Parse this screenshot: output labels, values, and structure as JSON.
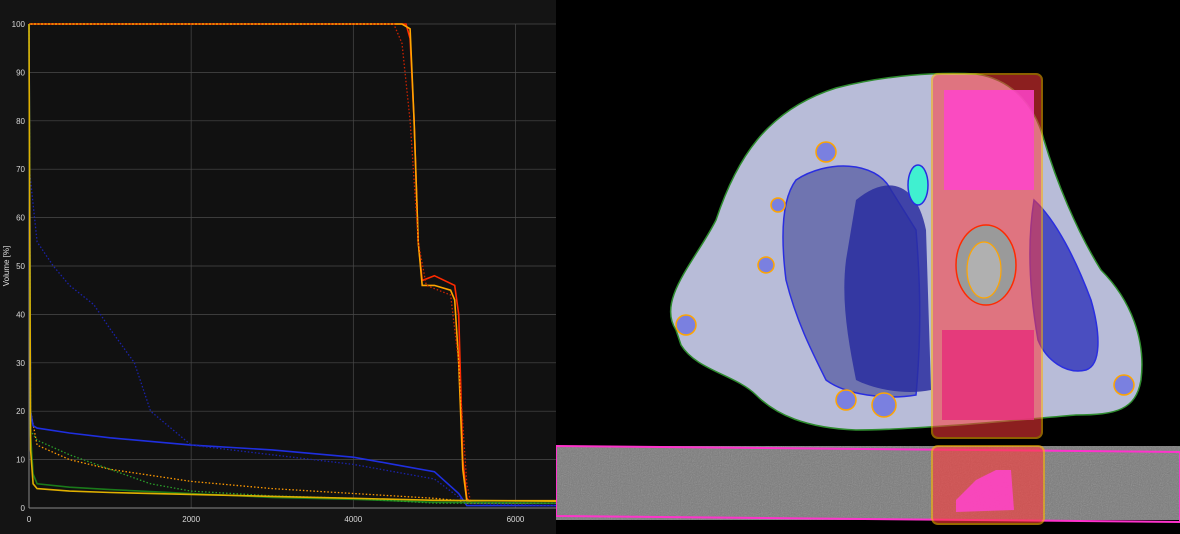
{
  "chart_data": {
    "type": "line",
    "title": "",
    "xlabel": "",
    "ylabel": "Volume [%]",
    "xlim": [
      0,
      6500
    ],
    "ylim": [
      0,
      100
    ],
    "x_ticks": [
      "0",
      "2000",
      "4000",
      "6000"
    ],
    "y_ticks": [
      "0",
      "10",
      "20",
      "30",
      "40",
      "50",
      "60",
      "70",
      "80",
      "90",
      "100"
    ],
    "grid": true,
    "legend": "none",
    "series": [
      {
        "color": "#ff2a00",
        "style": "solid",
        "x": [
          0,
          4650,
          4700,
          4750,
          4800,
          4850,
          5000,
          5250,
          5300,
          5350,
          5400,
          5450,
          6500
        ],
        "y": [
          100,
          100,
          97,
          80,
          55,
          47,
          48,
          46,
          40,
          10,
          2,
          1,
          1
        ]
      },
      {
        "color": "#ffa500",
        "style": "solid",
        "x": [
          0,
          4600,
          4700,
          4750,
          4800,
          4850,
          5000,
          5200,
          5250,
          5300,
          5350,
          5400,
          6500
        ],
        "y": [
          100,
          100,
          99,
          80,
          55,
          46,
          46,
          45,
          43,
          30,
          8,
          1.5,
          1.5
        ]
      },
      {
        "color": "#cc2200",
        "style": "dotted",
        "x": [
          0,
          4500,
          4600,
          4700,
          4800,
          4900,
          5200,
          5300,
          5400,
          5450,
          6500
        ],
        "y": [
          100,
          100,
          96,
          80,
          55,
          46,
          44,
          30,
          5,
          1,
          1
        ]
      },
      {
        "color": "#ff9900",
        "style": "dotted",
        "x": [
          0,
          20,
          100,
          500,
          1000,
          2000,
          3000,
          4000,
          4500,
          5000,
          5300,
          5400,
          6500
        ],
        "y": [
          100,
          20,
          13,
          10,
          8,
          5.5,
          4,
          3,
          2.5,
          2,
          1.5,
          1,
          1
        ]
      },
      {
        "color": "#1f2fe0",
        "style": "solid",
        "x": [
          0,
          20,
          50,
          100,
          500,
          1000,
          2000,
          3000,
          4000,
          4500,
          5000,
          5300,
          5400,
          6500
        ],
        "y": [
          100,
          20,
          17,
          16.5,
          15.5,
          14.5,
          13,
          12,
          10.5,
          9,
          7.5,
          3,
          0.5,
          0.5
        ]
      },
      {
        "color": "#1a22aa",
        "style": "dotted",
        "x": [
          0,
          5,
          100,
          300,
          500,
          800,
          1000,
          1300,
          1500,
          2000,
          3000,
          4000,
          5000,
          5400,
          6500
        ],
        "y": [
          100,
          70,
          55,
          50,
          46,
          42,
          37,
          30,
          20,
          13,
          11,
          9,
          6,
          1,
          0.5
        ]
      },
      {
        "color": "#1a7a1a",
        "style": "solid",
        "x": [
          0,
          20,
          50,
          100,
          500,
          1000,
          2000,
          3000,
          4000,
          5000,
          6500
        ],
        "y": [
          100,
          15,
          7,
          5,
          4.3,
          3.8,
          3,
          2.2,
          1.8,
          1.2,
          1
        ]
      },
      {
        "color": "#2aa02a",
        "style": "dotted",
        "x": [
          0,
          20,
          100,
          500,
          1000,
          1500,
          2000,
          3000,
          4000,
          5000,
          6500
        ],
        "y": [
          100,
          16,
          14,
          11,
          8,
          5,
          3.5,
          2.5,
          2,
          1,
          1
        ]
      },
      {
        "color": "#e0b000",
        "style": "solid",
        "x": [
          0,
          20,
          50,
          100,
          500,
          1000,
          2000,
          3000,
          4000,
          5000,
          6500
        ],
        "y": [
          100,
          12,
          5,
          4,
          3.5,
          3.2,
          2.8,
          2.4,
          2,
          1.6,
          1.4
        ]
      }
    ]
  }
}
